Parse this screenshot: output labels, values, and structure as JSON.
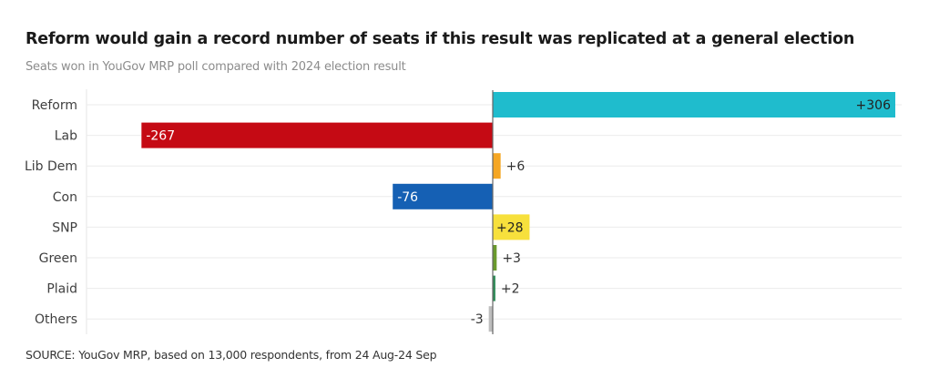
{
  "chart_data": {
    "type": "bar",
    "orientation": "horizontal",
    "title": "Reform would gain a record number of seats if this result was replicated at a general election",
    "subtitle": "Seats won in YouGov MRP poll compared with 2024 election result",
    "source": "SOURCE: YouGov MRP, based on 13,000 respondents, from 24 Aug-24 Sep",
    "xlabel": "",
    "ylabel": "",
    "xlim": [
      -267,
      306
    ],
    "grid": true,
    "categories": [
      "Reform",
      "Lab",
      "Lib Dem",
      "Con",
      "SNP",
      "Green",
      "Plaid",
      "Others"
    ],
    "values": [
      306,
      -267,
      6,
      -76,
      28,
      3,
      2,
      -3
    ],
    "data_labels": [
      "+306",
      "-267",
      "+6",
      "-76",
      "+28",
      "+3",
      "+2",
      "-3"
    ],
    "colors": [
      "#1fbccd",
      "#c50a14",
      "#f5a623",
      "#1560b4",
      "#f7e03c",
      "#6a9a2c",
      "#2e8b57",
      "#bdbdbd"
    ]
  }
}
